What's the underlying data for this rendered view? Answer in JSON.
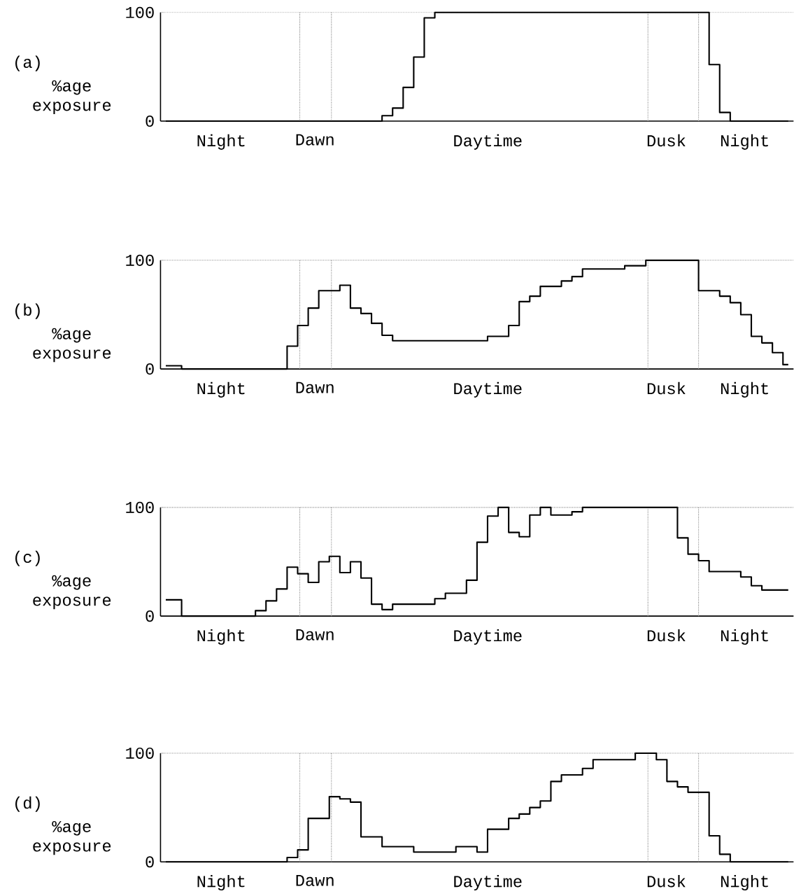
{
  "chart_data": [
    {
      "type": "step",
      "title": "(a)",
      "ylabel": "%age exposure",
      "color": "#000000",
      "ylim": [
        0,
        100
      ],
      "yticks": [
        0,
        100
      ],
      "annotations": [
        "Night",
        "Dawn",
        "Daytime",
        "Dusk",
        "Night"
      ],
      "ref_lines": [
        {
          "axis": "y",
          "value": 100,
          "line_style": "dotted",
          "color": "#888888"
        }
      ],
      "categories": [
        null,
        null,
        null,
        null,
        null,
        null,
        null,
        null,
        null,
        null,
        null,
        null,
        null,
        null,
        null,
        null,
        null,
        null,
        null,
        null,
        null,
        null,
        null,
        null,
        null,
        null,
        null,
        null,
        null,
        null,
        null,
        null,
        null,
        null,
        null,
        null,
        null,
        null,
        null,
        null,
        null,
        null,
        null,
        null,
        null,
        null,
        null,
        null,
        null,
        null,
        null,
        null,
        null,
        null,
        null,
        null,
        null,
        null,
        null,
        null
      ],
      "values": [
        0,
        0,
        0,
        0,
        0,
        0,
        0,
        0,
        0,
        0,
        0,
        0,
        0,
        0,
        0,
        0,
        0,
        0,
        0,
        0,
        0,
        5,
        12,
        31,
        59,
        95,
        100,
        100,
        100,
        100,
        100,
        100,
        100,
        100,
        100,
        100,
        100,
        100,
        100,
        100,
        100,
        100,
        100,
        100,
        100,
        100,
        100,
        100,
        100,
        100,
        100,
        100,
        52,
        8,
        0,
        0,
        0,
        0,
        0,
        0
      ]
    },
    {
      "type": "step",
      "title": "(b)",
      "ylabel": "%age exposure",
      "color": "#000000",
      "ylim": [
        0,
        100
      ],
      "yticks": [
        0,
        100
      ],
      "annotations": [
        "Night",
        "Dawn",
        "Daytime",
        "Dusk",
        "Night"
      ],
      "ref_lines": [
        {
          "axis": "y",
          "value": 100,
          "line_style": "dotted",
          "color": "#888888"
        }
      ],
      "categories": [
        null,
        null,
        null,
        null,
        null,
        null,
        null,
        null,
        null,
        null,
        null,
        null,
        null,
        null,
        null,
        null,
        null,
        null,
        null,
        null,
        null,
        null,
        null,
        null,
        null,
        null,
        null,
        null,
        null,
        null,
        null,
        null,
        null,
        null,
        null,
        null,
        null,
        null,
        null,
        null,
        null,
        null,
        null,
        null,
        null,
        null,
        null,
        null,
        null,
        null,
        null,
        null,
        null,
        null,
        null,
        null,
        null,
        null,
        null,
        null
      ],
      "values": [
        3,
        3,
        0,
        0,
        0,
        0,
        0,
        0,
        0,
        0,
        0,
        0,
        21,
        40,
        56,
        72,
        72,
        77,
        56,
        51,
        42,
        31,
        26,
        26,
        26,
        26,
        26,
        26,
        26,
        26,
        26,
        30,
        30,
        40,
        62,
        67,
        76,
        76,
        81,
        85,
        92,
        92,
        92,
        92,
        95,
        95,
        100,
        100,
        100,
        100,
        100,
        72,
        72,
        67,
        61,
        50,
        30,
        24,
        15,
        4
      ]
    },
    {
      "type": "step",
      "title": "(c)",
      "ylabel": "%age exposure",
      "color": "#000000",
      "ylim": [
        0,
        100
      ],
      "yticks": [
        0,
        100
      ],
      "annotations": [
        "Night",
        "Dawn",
        "Daytime",
        "Dusk",
        "Night"
      ],
      "ref_lines": [
        {
          "axis": "y",
          "value": 100,
          "line_style": "dotted",
          "color": "#888888"
        }
      ],
      "categories": [
        null,
        null,
        null,
        null,
        null,
        null,
        null,
        null,
        null,
        null,
        null,
        null,
        null,
        null,
        null,
        null,
        null,
        null,
        null,
        null,
        null,
        null,
        null,
        null,
        null,
        null,
        null,
        null,
        null,
        null,
        null,
        null,
        null,
        null,
        null,
        null,
        null,
        null,
        null,
        null,
        null,
        null,
        null,
        null,
        null,
        null,
        null,
        null,
        null,
        null,
        null,
        null,
        null,
        null,
        null,
        null,
        null,
        null,
        null,
        null
      ],
      "values": [
        15,
        15,
        0,
        0,
        0,
        0,
        0,
        0,
        0,
        5,
        14,
        25,
        45,
        39,
        31,
        50,
        55,
        40,
        50,
        35,
        11,
        6,
        11,
        11,
        11,
        11,
        16,
        21,
        21,
        33,
        68,
        92,
        100,
        77,
        73,
        93,
        100,
        93,
        93,
        96,
        100,
        100,
        100,
        100,
        100,
        100,
        100,
        100,
        100,
        72,
        57,
        51,
        41,
        41,
        41,
        36,
        28,
        24,
        24,
        24
      ]
    },
    {
      "type": "step",
      "title": "(d)",
      "ylabel": "%age exposure",
      "color": "#000000",
      "ylim": [
        0,
        100
      ],
      "yticks": [
        0,
        100
      ],
      "annotations": [
        "Night",
        "Dawn",
        "Daytime",
        "Dusk",
        "Night"
      ],
      "ref_lines": [
        {
          "axis": "y",
          "value": 100,
          "line_style": "dotted",
          "color": "#888888"
        }
      ],
      "categories": [
        null,
        null,
        null,
        null,
        null,
        null,
        null,
        null,
        null,
        null,
        null,
        null,
        null,
        null,
        null,
        null,
        null,
        null,
        null,
        null,
        null,
        null,
        null,
        null,
        null,
        null,
        null,
        null,
        null,
        null,
        null,
        null,
        null,
        null,
        null,
        null,
        null,
        null,
        null,
        null,
        null,
        null,
        null,
        null,
        null,
        null,
        null,
        null,
        null,
        null,
        null,
        null,
        null,
        null,
        null,
        null,
        null,
        null,
        null,
        null
      ],
      "values": [
        0,
        0,
        0,
        0,
        0,
        0,
        0,
        0,
        0,
        0,
        0,
        0,
        4,
        11,
        40,
        40,
        60,
        58,
        55,
        23,
        23,
        14,
        14,
        14,
        9,
        9,
        9,
        9,
        14,
        14,
        9,
        30,
        30,
        40,
        44,
        50,
        56,
        74,
        80,
        80,
        86,
        94,
        94,
        94,
        94,
        100,
        100,
        94,
        74,
        69,
        64,
        64,
        24,
        7,
        0,
        0,
        0,
        0,
        0,
        0
      ]
    }
  ]
}
